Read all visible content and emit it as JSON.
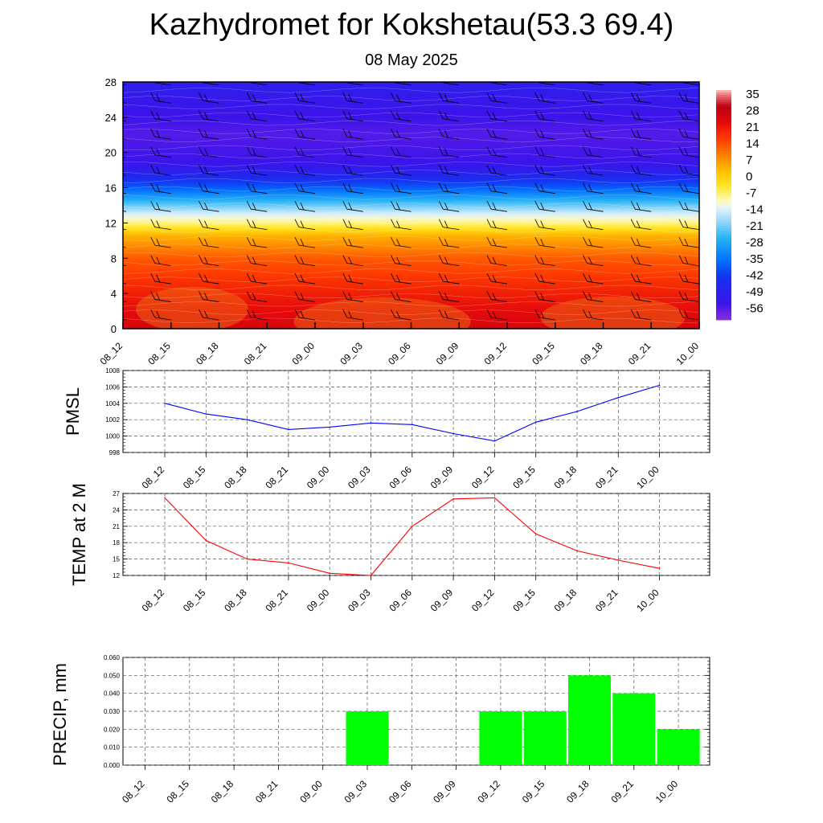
{
  "header": {
    "title": "Kazhydromet for Kokshetau(53.3 69.4)",
    "subtitle": "08 May 2025"
  },
  "chart_data": [
    {
      "id": "cross_section",
      "type": "heatmap",
      "title": "",
      "x_categories": [
        "08_12",
        "08_15",
        "08_18",
        "08_21",
        "09_00",
        "09_03",
        "09_06",
        "09_09",
        "09_12",
        "09_15",
        "09_18",
        "09_21",
        "10_00"
      ],
      "y_ticks": [
        "0",
        "4",
        "8",
        "12",
        "16",
        "20",
        "24",
        "28"
      ],
      "ylim": [
        0,
        28
      ],
      "colorbar": {
        "labels": [
          "35",
          "28",
          "21",
          "14",
          "7",
          "0",
          "-7",
          "-14",
          "-21",
          "-28",
          "-35",
          "-42",
          "-49",
          "-56"
        ],
        "range": [
          -63,
          35
        ]
      },
      "temperature_profile": [
        {
          "h": 0,
          "t": 24
        },
        {
          "h": 4,
          "t": 18
        },
        {
          "h": 8,
          "t": 11
        },
        {
          "h": 10.5,
          "t": 2
        },
        {
          "h": 12,
          "t": -10
        },
        {
          "h": 13,
          "t": -16
        },
        {
          "h": 14.5,
          "t": -28
        },
        {
          "h": 16,
          "t": -40
        },
        {
          "h": 17.5,
          "t": -50
        },
        {
          "h": 19,
          "t": -56
        },
        {
          "h": 22,
          "t": -58
        },
        {
          "h": 25,
          "t": -55
        },
        {
          "h": 28,
          "t": -52
        }
      ],
      "wind_barbs": "shown"
    },
    {
      "id": "pmsl",
      "type": "line",
      "ylabel": "PMSL",
      "categories": [
        "08_12",
        "08_15",
        "08_18",
        "08_21",
        "09_00",
        "09_03",
        "09_06",
        "09_09",
        "09_12",
        "09_15",
        "09_18",
        "09_21",
        "10_00"
      ],
      "values": [
        1004.0,
        1002.7,
        1002.0,
        1000.8,
        1001.1,
        1001.6,
        1001.4,
        1000.3,
        999.4,
        1001.7,
        1003.0,
        1004.7,
        1006.2
      ],
      "ylim": [
        998,
        1008
      ],
      "yticks": [
        "998",
        "1000",
        "1002",
        "1004",
        "1006",
        "1008"
      ],
      "color": "#0000ff",
      "grid": true
    },
    {
      "id": "temp",
      "type": "line",
      "ylabel": "TEMP at 2 M",
      "categories": [
        "08_12",
        "08_15",
        "08_18",
        "08_21",
        "09_00",
        "09_03",
        "09_06",
        "09_09",
        "09_12",
        "09_15",
        "09_18",
        "09_21",
        "10_00"
      ],
      "values": [
        26.2,
        18.4,
        15.0,
        14.3,
        12.4,
        12.0,
        21.0,
        26.0,
        26.2,
        19.6,
        16.5,
        14.8,
        13.3
      ],
      "ylim": [
        12,
        27
      ],
      "yticks": [
        "12",
        "15",
        "18",
        "21",
        "24",
        "27"
      ],
      "color": "#ff0000",
      "grid": true
    },
    {
      "id": "precip",
      "type": "bar",
      "ylabel": "PRECIP, mm",
      "categories": [
        "08_12",
        "08_15",
        "08_18",
        "08_21",
        "09_00",
        "09_03",
        "09_06",
        "09_09",
        "09_12",
        "09_15",
        "09_18",
        "09_21",
        "10_00"
      ],
      "values": [
        0,
        0,
        0,
        0,
        0,
        0.03,
        0,
        0,
        0.03,
        0.03,
        0.05,
        0.04,
        0.02
      ],
      "ylim": [
        0,
        0.06
      ],
      "yticks": [
        "0.000",
        "0.010",
        "0.020",
        "0.030",
        "0.040",
        "0.050",
        "0.060"
      ],
      "color": "#00ff00",
      "grid": true
    }
  ]
}
